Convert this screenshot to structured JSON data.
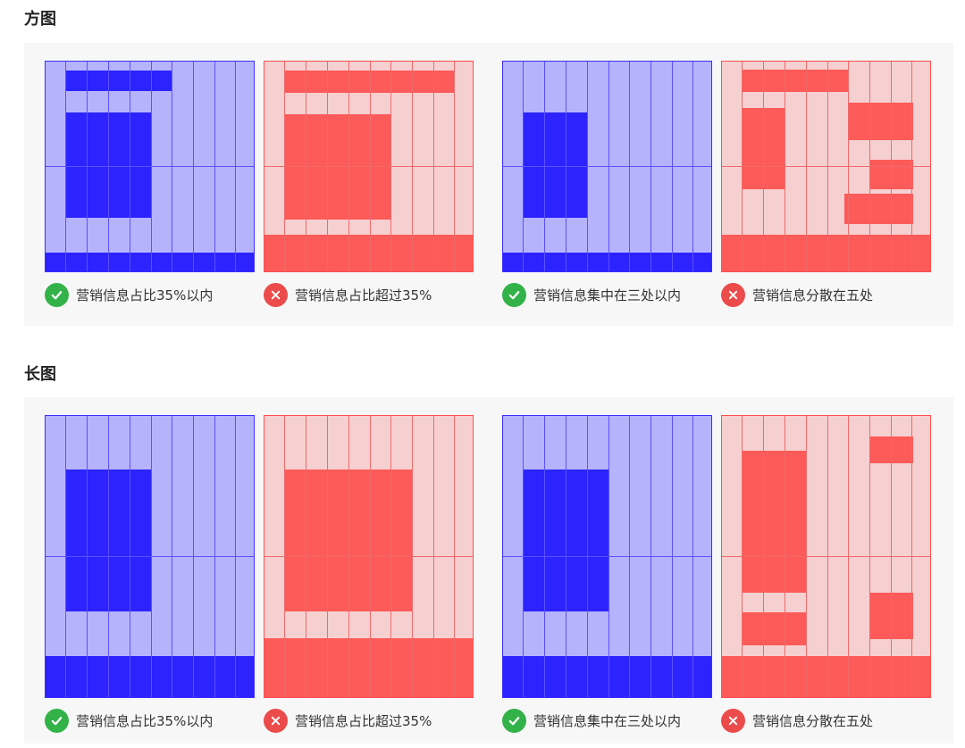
{
  "sections": [
    {
      "title": "方图",
      "cards": [
        {
          "caption": "营销信息占比35%以内",
          "verdict": "correct",
          "color": "#2c23ff"
        },
        {
          "caption": "营销信息占比超过35%",
          "verdict": "wrong",
          "color": "#fd5a5a"
        },
        {
          "caption": "营销信息集中在三处以内",
          "verdict": "correct",
          "color": "#2c23ff"
        },
        {
          "caption": "营销信息分散在五处",
          "verdict": "wrong",
          "color": "#fd5a5a"
        }
      ]
    },
    {
      "title": "长图",
      "cards": [
        {
          "caption": "营销信息占比35%以内",
          "verdict": "correct",
          "color": "#2c23ff"
        },
        {
          "caption": "营销信息占比超过35%",
          "verdict": "wrong",
          "color": "#fd5a5a"
        },
        {
          "caption": "营销信息集中在三处以内",
          "verdict": "correct",
          "color": "#2c23ff"
        },
        {
          "caption": "营销信息分散在五处",
          "verdict": "wrong",
          "color": "#fd5a5a"
        }
      ]
    }
  ],
  "icons": {
    "correct": "check-circle-icon",
    "wrong": "cross-circle-icon"
  }
}
